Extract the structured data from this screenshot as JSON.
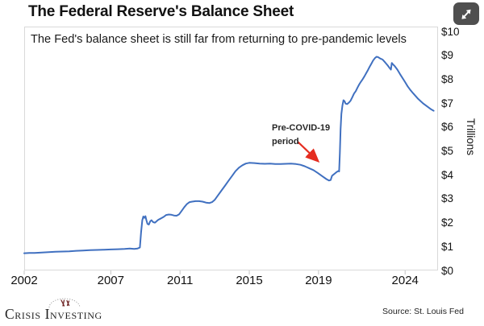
{
  "chart_data": {
    "type": "line",
    "title": "The Federal Reserve's Balance Sheet",
    "subtitle": "The Fed's balance sheet is still far from returning to pre-pandemic levels",
    "ylabel": "Trillions",
    "xlim": [
      2002,
      2025.9
    ],
    "ylim": [
      0,
      10
    ],
    "grid": false,
    "legend": false,
    "line_color": "#4070c0",
    "x_ticks": [
      {
        "year": 2002,
        "label": "2002"
      },
      {
        "year": 2007,
        "label": "2007"
      },
      {
        "year": 2011,
        "label": "2011"
      },
      {
        "year": 2015,
        "label": "2015"
      },
      {
        "year": 2019,
        "label": "2019"
      },
      {
        "year": 2024,
        "label": "2024"
      }
    ],
    "y_ticks": [
      {
        "value": 0,
        "label": "$0"
      },
      {
        "value": 1,
        "label": "$1"
      },
      {
        "value": 2,
        "label": "$2"
      },
      {
        "value": 3,
        "label": "$3"
      },
      {
        "value": 4,
        "label": "$4"
      },
      {
        "value": 5,
        "label": "$5"
      },
      {
        "value": 6,
        "label": "$6"
      },
      {
        "value": 7,
        "label": "$7"
      },
      {
        "value": 8,
        "label": "$8"
      },
      {
        "value": 9,
        "label": "$9"
      },
      {
        "value": 10,
        "label": "$10"
      }
    ],
    "annotation": {
      "line1": "Pre-COVID-19",
      "line2": "period",
      "arrow_color": "#e52d20"
    },
    "series": [
      {
        "name": "Fed balance sheet",
        "unit": "trillions USD",
        "points": [
          [
            2002.0,
            0.72
          ],
          [
            2002.3,
            0.73
          ],
          [
            2002.6,
            0.735
          ],
          [
            2003.0,
            0.75
          ],
          [
            2003.4,
            0.765
          ],
          [
            2003.8,
            0.78
          ],
          [
            2004.2,
            0.79
          ],
          [
            2004.6,
            0.8
          ],
          [
            2005.0,
            0.82
          ],
          [
            2005.4,
            0.835
          ],
          [
            2005.8,
            0.85
          ],
          [
            2006.2,
            0.86
          ],
          [
            2006.6,
            0.87
          ],
          [
            2007.0,
            0.88
          ],
          [
            2007.4,
            0.89
          ],
          [
            2007.8,
            0.9
          ],
          [
            2008.1,
            0.92
          ],
          [
            2008.35,
            0.9
          ],
          [
            2008.55,
            0.92
          ],
          [
            2008.68,
            0.96
          ],
          [
            2008.75,
            1.6
          ],
          [
            2008.82,
            2.1
          ],
          [
            2008.88,
            2.26
          ],
          [
            2008.94,
            2.2
          ],
          [
            2009.0,
            2.27
          ],
          [
            2009.06,
            2.1
          ],
          [
            2009.12,
            1.95
          ],
          [
            2009.2,
            1.92
          ],
          [
            2009.28,
            2.06
          ],
          [
            2009.35,
            2.1
          ],
          [
            2009.45,
            2.02
          ],
          [
            2009.55,
            2.0
          ],
          [
            2009.65,
            2.06
          ],
          [
            2009.75,
            2.12
          ],
          [
            2009.9,
            2.18
          ],
          [
            2010.05,
            2.24
          ],
          [
            2010.2,
            2.32
          ],
          [
            2010.35,
            2.34
          ],
          [
            2010.5,
            2.33
          ],
          [
            2010.65,
            2.3
          ],
          [
            2010.8,
            2.29
          ],
          [
            2010.95,
            2.35
          ],
          [
            2011.1,
            2.5
          ],
          [
            2011.25,
            2.65
          ],
          [
            2011.4,
            2.78
          ],
          [
            2011.55,
            2.86
          ],
          [
            2011.7,
            2.88
          ],
          [
            2011.9,
            2.9
          ],
          [
            2012.1,
            2.9
          ],
          [
            2012.3,
            2.88
          ],
          [
            2012.5,
            2.84
          ],
          [
            2012.7,
            2.82
          ],
          [
            2012.85,
            2.86
          ],
          [
            2013.0,
            2.95
          ],
          [
            2013.2,
            3.15
          ],
          [
            2013.4,
            3.35
          ],
          [
            2013.6,
            3.55
          ],
          [
            2013.8,
            3.75
          ],
          [
            2014.0,
            3.95
          ],
          [
            2014.2,
            4.15
          ],
          [
            2014.4,
            4.3
          ],
          [
            2014.6,
            4.4
          ],
          [
            2014.8,
            4.47
          ],
          [
            2015.0,
            4.5
          ],
          [
            2015.3,
            4.49
          ],
          [
            2015.6,
            4.47
          ],
          [
            2015.9,
            4.46
          ],
          [
            2016.2,
            4.47
          ],
          [
            2016.5,
            4.45
          ],
          [
            2016.8,
            4.45
          ],
          [
            2017.1,
            4.46
          ],
          [
            2017.4,
            4.47
          ],
          [
            2017.7,
            4.45
          ],
          [
            2017.95,
            4.42
          ],
          [
            2018.2,
            4.36
          ],
          [
            2018.45,
            4.28
          ],
          [
            2018.7,
            4.2
          ],
          [
            2018.95,
            4.08
          ],
          [
            2019.2,
            3.95
          ],
          [
            2019.45,
            3.82
          ],
          [
            2019.6,
            3.76
          ],
          [
            2019.7,
            3.78
          ],
          [
            2019.78,
            3.96
          ],
          [
            2019.85,
            4.0
          ],
          [
            2019.95,
            4.06
          ],
          [
            2020.05,
            4.12
          ],
          [
            2020.15,
            4.16
          ],
          [
            2020.19,
            4.14
          ],
          [
            2020.23,
            4.9
          ],
          [
            2020.27,
            5.9
          ],
          [
            2020.32,
            6.55
          ],
          [
            2020.38,
            6.9
          ],
          [
            2020.44,
            7.12
          ],
          [
            2020.5,
            7.08
          ],
          [
            2020.56,
            6.98
          ],
          [
            2020.65,
            6.96
          ],
          [
            2020.75,
            7.02
          ],
          [
            2020.85,
            7.1
          ],
          [
            2020.95,
            7.25
          ],
          [
            2021.05,
            7.4
          ],
          [
            2021.15,
            7.5
          ],
          [
            2021.25,
            7.65
          ],
          [
            2021.35,
            7.78
          ],
          [
            2021.45,
            7.9
          ],
          [
            2021.55,
            8.0
          ],
          [
            2021.65,
            8.12
          ],
          [
            2021.75,
            8.25
          ],
          [
            2021.85,
            8.38
          ],
          [
            2021.95,
            8.52
          ],
          [
            2022.05,
            8.65
          ],
          [
            2022.15,
            8.78
          ],
          [
            2022.25,
            8.88
          ],
          [
            2022.35,
            8.94
          ],
          [
            2022.45,
            8.92
          ],
          [
            2022.55,
            8.87
          ],
          [
            2022.7,
            8.82
          ],
          [
            2022.85,
            8.7
          ],
          [
            2023.0,
            8.57
          ],
          [
            2023.1,
            8.47
          ],
          [
            2023.18,
            8.4
          ],
          [
            2023.23,
            8.68
          ],
          [
            2023.3,
            8.62
          ],
          [
            2023.4,
            8.55
          ],
          [
            2023.55,
            8.4
          ],
          [
            2023.7,
            8.22
          ],
          [
            2023.85,
            8.05
          ],
          [
            2024.0,
            7.88
          ],
          [
            2024.15,
            7.7
          ],
          [
            2024.3,
            7.55
          ],
          [
            2024.45,
            7.42
          ],
          [
            2024.6,
            7.3
          ],
          [
            2024.75,
            7.18
          ],
          [
            2024.9,
            7.08
          ],
          [
            2025.05,
            6.98
          ],
          [
            2025.2,
            6.9
          ],
          [
            2025.35,
            6.82
          ],
          [
            2025.5,
            6.74
          ],
          [
            2025.65,
            6.68
          ]
        ]
      }
    ]
  },
  "footer": {
    "logo_text": "Crisis Investing",
    "source": "Source: St. Louis Fed"
  }
}
